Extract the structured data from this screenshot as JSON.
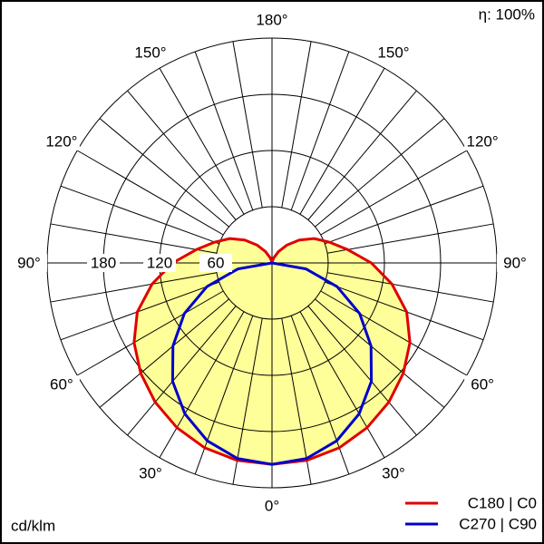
{
  "chart_data": {
    "type": "polar",
    "angles": [
      0,
      10,
      20,
      30,
      40,
      50,
      60,
      70,
      80,
      90,
      100,
      110,
      120,
      130,
      140,
      150,
      160,
      170,
      180
    ],
    "series": [
      {
        "name": "C180 | C0",
        "color": "#e00000",
        "fill": "#ffff99",
        "values": [
          215,
          214,
          210,
          203,
          194,
          183,
          170,
          153,
          130,
          106,
          82,
          65,
          52,
          38,
          25,
          14,
          6,
          2,
          0
        ]
      },
      {
        "name": "C270 | C90",
        "color": "#0000cc",
        "values": [
          215,
          212,
          202,
          186,
          165,
          138,
          108,
          74,
          37,
          0,
          0,
          0,
          0,
          0,
          0,
          0,
          0,
          0,
          0
        ]
      }
    ],
    "rlim": [
      0,
      240
    ],
    "rticks": [
      60,
      120,
      180
    ],
    "angle_ticks": [
      {
        "value": 0,
        "label": "0°"
      },
      {
        "value": 30,
        "label": "30°"
      },
      {
        "value": 60,
        "label": "60°"
      },
      {
        "value": 90,
        "label": "90°"
      },
      {
        "value": 120,
        "label": "120°"
      },
      {
        "value": 150,
        "label": "150°"
      },
      {
        "value": 180,
        "label": "180°"
      }
    ],
    "r_label": "cd/klm",
    "efficiency": "η: 100%"
  }
}
